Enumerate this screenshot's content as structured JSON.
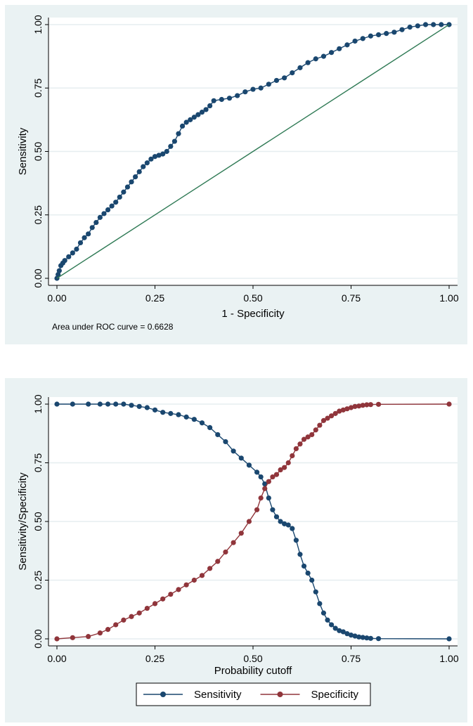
{
  "chart_data": [
    {
      "type": "line",
      "title": "",
      "xlabel": "1 - Specificity",
      "ylabel": "Sensitivity",
      "xlim": [
        0,
        1
      ],
      "ylim": [
        0,
        1
      ],
      "xticks": [
        "0.00",
        "0.25",
        "0.50",
        "0.75",
        "1.00"
      ],
      "yticks": [
        "0.00",
        "0.25",
        "0.50",
        "0.75",
        "1.00"
      ],
      "grid": true,
      "note": "Area under ROC curve = 0.6628",
      "series": [
        {
          "color": "#1a476f",
          "marker": "circle",
          "x": [
            0.0,
            0.003,
            0.006,
            0.01,
            0.015,
            0.02,
            0.03,
            0.04,
            0.05,
            0.06,
            0.07,
            0.08,
            0.09,
            0.1,
            0.11,
            0.12,
            0.13,
            0.14,
            0.15,
            0.16,
            0.17,
            0.18,
            0.19,
            0.2,
            0.21,
            0.22,
            0.23,
            0.24,
            0.25,
            0.26,
            0.27,
            0.28,
            0.29,
            0.3,
            0.31,
            0.32,
            0.33,
            0.34,
            0.35,
            0.36,
            0.37,
            0.38,
            0.39,
            0.4,
            0.42,
            0.44,
            0.46,
            0.48,
            0.5,
            0.52,
            0.54,
            0.56,
            0.58,
            0.6,
            0.62,
            0.64,
            0.66,
            0.68,
            0.7,
            0.72,
            0.74,
            0.76,
            0.78,
            0.8,
            0.82,
            0.84,
            0.86,
            0.88,
            0.9,
            0.92,
            0.94,
            0.96,
            0.98,
            1.0
          ],
          "y": [
            0.0,
            0.015,
            0.03,
            0.05,
            0.06,
            0.07,
            0.085,
            0.1,
            0.115,
            0.14,
            0.16,
            0.175,
            0.2,
            0.22,
            0.24,
            0.255,
            0.27,
            0.285,
            0.3,
            0.32,
            0.34,
            0.36,
            0.38,
            0.4,
            0.42,
            0.44,
            0.455,
            0.47,
            0.48,
            0.485,
            0.49,
            0.5,
            0.52,
            0.54,
            0.57,
            0.6,
            0.615,
            0.625,
            0.635,
            0.645,
            0.655,
            0.665,
            0.68,
            0.7,
            0.705,
            0.71,
            0.72,
            0.735,
            0.745,
            0.75,
            0.765,
            0.78,
            0.79,
            0.81,
            0.83,
            0.85,
            0.865,
            0.875,
            0.89,
            0.905,
            0.92,
            0.935,
            0.945,
            0.955,
            0.96,
            0.965,
            0.97,
            0.98,
            0.99,
            0.995,
            1.0,
            1.0,
            1.0,
            1.0
          ]
        },
        {
          "color": "#2f7a55",
          "marker": "none",
          "x": [
            0,
            1
          ],
          "y": [
            0,
            1
          ]
        }
      ]
    },
    {
      "type": "line",
      "title": "",
      "xlabel": "Probability cutoff",
      "ylabel": "Sensitivity/Specificity",
      "xlim": [
        0,
        1
      ],
      "ylim": [
        0,
        1
      ],
      "xticks": [
        "0.00",
        "0.25",
        "0.50",
        "0.75",
        "1.00"
      ],
      "yticks": [
        "0.00",
        "0.25",
        "0.50",
        "0.75",
        "1.00"
      ],
      "grid": true,
      "legend": "bottom",
      "series": [
        {
          "name": "Sensitivity",
          "color": "#1a476f",
          "marker": "circle",
          "x": [
            0.0,
            0.04,
            0.08,
            0.11,
            0.13,
            0.15,
            0.17,
            0.19,
            0.21,
            0.23,
            0.25,
            0.27,
            0.29,
            0.31,
            0.33,
            0.35,
            0.37,
            0.39,
            0.41,
            0.43,
            0.45,
            0.47,
            0.49,
            0.51,
            0.52,
            0.53,
            0.54,
            0.55,
            0.56,
            0.57,
            0.58,
            0.59,
            0.6,
            0.61,
            0.62,
            0.63,
            0.64,
            0.65,
            0.66,
            0.67,
            0.68,
            0.69,
            0.7,
            0.71,
            0.72,
            0.73,
            0.74,
            0.75,
            0.76,
            0.77,
            0.78,
            0.79,
            0.8,
            0.82,
            1.0
          ],
          "y": [
            1.0,
            1.0,
            1.0,
            1.0,
            1.0,
            1.0,
            1.0,
            0.995,
            0.99,
            0.985,
            0.975,
            0.965,
            0.96,
            0.955,
            0.945,
            0.935,
            0.92,
            0.9,
            0.87,
            0.84,
            0.8,
            0.77,
            0.74,
            0.71,
            0.69,
            0.66,
            0.6,
            0.55,
            0.52,
            0.5,
            0.49,
            0.485,
            0.47,
            0.42,
            0.36,
            0.31,
            0.28,
            0.25,
            0.2,
            0.15,
            0.11,
            0.08,
            0.06,
            0.045,
            0.035,
            0.03,
            0.022,
            0.016,
            0.012,
            0.008,
            0.006,
            0.004,
            0.002,
            0.001,
            0.0
          ]
        },
        {
          "name": "Specificity",
          "color": "#90353b",
          "marker": "circle",
          "x": [
            0.0,
            0.04,
            0.08,
            0.11,
            0.13,
            0.15,
            0.17,
            0.19,
            0.21,
            0.23,
            0.25,
            0.27,
            0.29,
            0.31,
            0.33,
            0.35,
            0.37,
            0.39,
            0.41,
            0.43,
            0.45,
            0.47,
            0.49,
            0.51,
            0.52,
            0.53,
            0.54,
            0.55,
            0.56,
            0.57,
            0.58,
            0.59,
            0.6,
            0.61,
            0.62,
            0.63,
            0.64,
            0.65,
            0.66,
            0.67,
            0.68,
            0.69,
            0.7,
            0.71,
            0.72,
            0.73,
            0.74,
            0.75,
            0.76,
            0.77,
            0.78,
            0.79,
            0.8,
            0.82,
            1.0
          ],
          "y": [
            0.0,
            0.005,
            0.01,
            0.025,
            0.04,
            0.06,
            0.08,
            0.095,
            0.11,
            0.13,
            0.15,
            0.17,
            0.19,
            0.21,
            0.23,
            0.25,
            0.27,
            0.3,
            0.33,
            0.37,
            0.41,
            0.45,
            0.5,
            0.55,
            0.6,
            0.64,
            0.67,
            0.69,
            0.7,
            0.72,
            0.73,
            0.75,
            0.78,
            0.81,
            0.83,
            0.85,
            0.86,
            0.87,
            0.89,
            0.91,
            0.93,
            0.94,
            0.95,
            0.96,
            0.97,
            0.975,
            0.98,
            0.985,
            0.99,
            0.992,
            0.995,
            0.997,
            0.998,
            0.999,
            1.0
          ]
        }
      ]
    }
  ]
}
